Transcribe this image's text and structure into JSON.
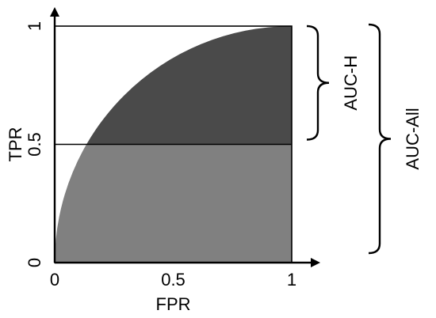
{
  "chart_data": {
    "type": "area",
    "curve_kind": "roc-quarter-circle",
    "x_axis": {
      "label": "FPR",
      "ticks": [
        "0",
        "0.5",
        "1"
      ],
      "range": [
        0,
        1
      ]
    },
    "y_axis": {
      "label": "TPR",
      "ticks": [
        "0",
        "0.5",
        "1"
      ],
      "range": [
        0,
        1
      ]
    },
    "threshold_tpr": 0.5,
    "regions": [
      {
        "name": "upper",
        "tpr_range": [
          0.5,
          1
        ],
        "color": "#4a4a4a"
      },
      {
        "name": "lower",
        "tpr_range": [
          0,
          0.5
        ],
        "color": "#808080"
      }
    ],
    "braces": [
      {
        "label": "AUC-H",
        "tpr_range": [
          0.5,
          1
        ]
      },
      {
        "label": "AUC-All",
        "tpr_range": [
          0,
          1
        ]
      }
    ],
    "grid": false
  }
}
